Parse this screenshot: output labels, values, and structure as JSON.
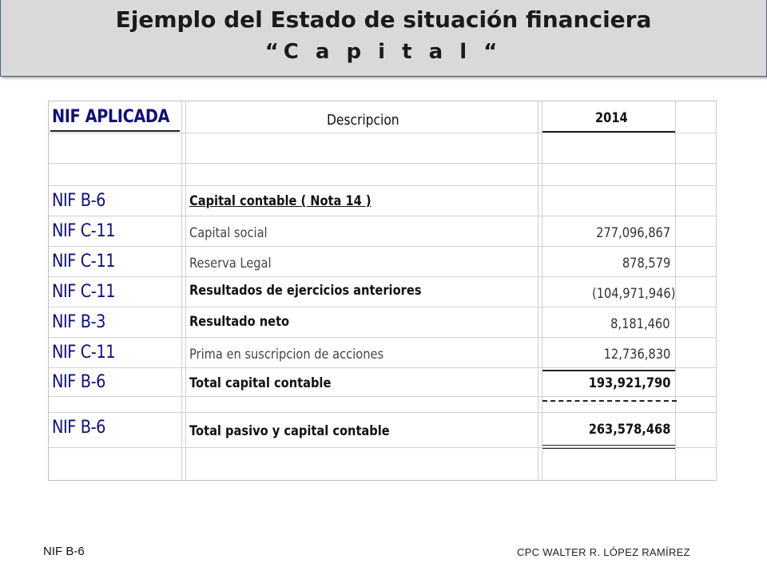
{
  "title": {
    "line1": "Ejemplo del Estado de situación financiera",
    "line2": "“C a p i t a l “"
  },
  "table": {
    "headers": {
      "nif": "NIF APLICADA",
      "description": "Descripcion",
      "year": "2014"
    },
    "rows": [
      {
        "nif": "NIF B-6",
        "description": "Capital contable   ( Nota 14 )",
        "amount": ""
      },
      {
        "nif": "NIF C-11",
        "description": "Capital social",
        "amount": "277,096,867"
      },
      {
        "nif": "NIF C-11",
        "description": "Reserva Legal",
        "amount": "878,579"
      },
      {
        "nif": "NIF C-11",
        "description": "Resultados de ejercicios anteriores",
        "amount": "(104,971,946)"
      },
      {
        "nif": "NIF B-3",
        "description": "Resultado neto",
        "amount": "8,181,460"
      },
      {
        "nif": "NIF C-11",
        "description": "Prima en suscripcion de acciones",
        "amount": "12,736,830"
      },
      {
        "nif": "NIF B-6",
        "description": "Total capital contable",
        "amount": "193,921,790"
      },
      {
        "nif": "NIF B-6",
        "description": "Total pasivo y capital contable",
        "amount": "263,578,468"
      }
    ]
  },
  "footer": {
    "left": "NIF B-6",
    "right": "CPC  WALTER R. LÓPEZ RAMÍREZ"
  }
}
